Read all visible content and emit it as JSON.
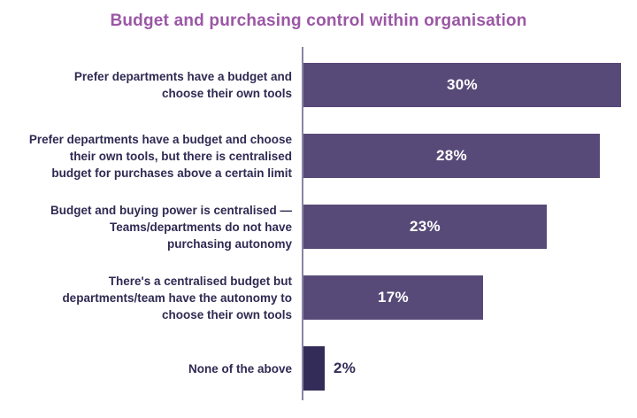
{
  "colors": {
    "title": "#9b57a5",
    "category_label": "#2f2a52",
    "axis": "#8b84a3",
    "bar_fill": "#584a78",
    "bar_fill_dark": "#332c58",
    "value_label_inside": "#ffffff",
    "value_label_outside": "#332c58",
    "background": "#ffffff"
  },
  "chart_data": {
    "type": "bar",
    "orientation": "horizontal",
    "title": "Budget and purchasing control within organisation",
    "xlabel": "",
    "ylabel": "",
    "unit": "%",
    "xlim": [
      0,
      31.4
    ],
    "grid": false,
    "legend": "none",
    "categories": [
      "Prefer departments have a budget and choose their own tools",
      "Prefer departments have a budget and choose their own tools, but there is centralised budget for purchases above a certain limit",
      "Budget and buying power is centralised — Teams/departments do not have purchasing autonomy",
      "There's a centralised budget but departments/team have the autonomy to choose their own tools",
      "None of the above"
    ],
    "values": [
      30,
      28,
      23,
      17,
      2
    ],
    "rows": [
      {
        "label": "Prefer departments have a budget and\nchoose their own tools",
        "value": 30,
        "value_label": "30%",
        "color": "#584a78",
        "value_label_position": "inside"
      },
      {
        "label": "Prefer departments have a budget and choose\ntheir own tools, but there is centralised\nbudget for purchases above a certain limit",
        "value": 28,
        "value_label": "28%",
        "color": "#584a78",
        "value_label_position": "inside"
      },
      {
        "label": "Budget and buying power is centralised —\nTeams/departments do not have\npurchasing autonomy",
        "value": 23,
        "value_label": "23%",
        "color": "#584a78",
        "value_label_position": "inside"
      },
      {
        "label": "There's a centralised budget but\ndepartments/team have the autonomy to\nchoose their own tools",
        "value": 17,
        "value_label": "17%",
        "color": "#584a78",
        "value_label_position": "inside"
      },
      {
        "label": "None of the above",
        "value": 2,
        "value_label": "2%",
        "color": "#332c58",
        "value_label_position": "outside"
      }
    ]
  }
}
